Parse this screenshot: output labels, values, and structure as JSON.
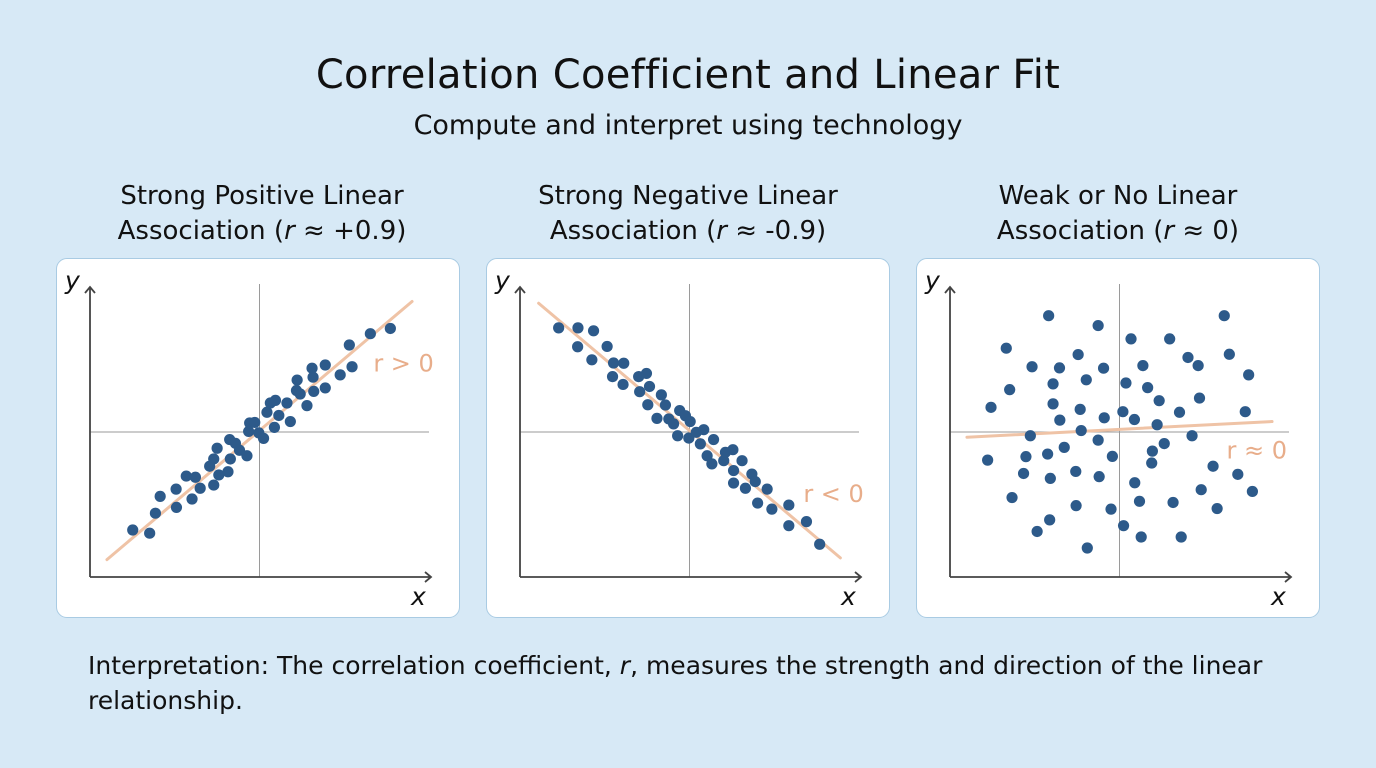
{
  "title": "Correlation Coefficient and Linear Fit",
  "subtitle": "Compute and interpret using technology",
  "interpretation": {
    "prefix": "Interpretation: The correlation coefficient, ",
    "symbol": "r",
    "suffix": ", measures the strength and direction of the linear relationship."
  },
  "colors": {
    "background": "#d7e9f6",
    "points": "#2d5a8a",
    "fit_line": "#efc3a6",
    "annotation": "#e8ad8a",
    "axes": "#444444",
    "panel_border": "#a9cbe3"
  },
  "chart_data": [
    {
      "type": "scatter",
      "title_line1": "Strong Positive Linear",
      "title_line2_prefix": "Association (",
      "title_symbol": "r",
      "title_line2_suffix": " ≈ +0.9)",
      "xlabel": "x",
      "ylabel": "y",
      "xlim": [
        0,
        10
      ],
      "ylim": [
        0,
        10
      ],
      "grid": false,
      "reference_lines": {
        "x": 5,
        "y": 5
      },
      "annotation": {
        "text": "r > 0",
        "x": 9.25,
        "y": 7.4
      },
      "fit_line": [
        [
          0.5,
          0.6
        ],
        [
          9.5,
          9.5
        ]
      ],
      "points": [
        [
          1.26,
          1.62
        ],
        [
          1.76,
          1.51
        ],
        [
          1.93,
          2.2
        ],
        [
          2.07,
          2.78
        ],
        [
          2.54,
          3.03
        ],
        [
          2.55,
          2.4
        ],
        [
          2.84,
          3.48
        ],
        [
          3.01,
          2.69
        ],
        [
          3.11,
          3.44
        ],
        [
          3.25,
          3.06
        ],
        [
          3.53,
          3.82
        ],
        [
          3.65,
          4.07
        ],
        [
          3.65,
          3.17
        ],
        [
          3.75,
          4.44
        ],
        [
          3.8,
          3.52
        ],
        [
          4.07,
          3.63
        ],
        [
          4.12,
          4.74
        ],
        [
          4.14,
          4.07
        ],
        [
          4.29,
          4.61
        ],
        [
          4.41,
          4.37
        ],
        [
          4.63,
          4.18
        ],
        [
          4.68,
          5.02
        ],
        [
          4.71,
          5.31
        ],
        [
          4.86,
          5.33
        ],
        [
          4.98,
          4.97
        ],
        [
          5.12,
          4.78
        ],
        [
          5.22,
          5.68
        ],
        [
          5.32,
          6.0
        ],
        [
          5.47,
          6.09
        ],
        [
          5.44,
          5.16
        ],
        [
          5.57,
          5.57
        ],
        [
          5.81,
          6.0
        ],
        [
          5.91,
          5.36
        ],
        [
          6.09,
          6.43
        ],
        [
          6.11,
          6.79
        ],
        [
          6.2,
          6.31
        ],
        [
          6.4,
          5.91
        ],
        [
          6.55,
          7.2
        ],
        [
          6.58,
          6.89
        ],
        [
          6.6,
          6.4
        ],
        [
          6.94,
          7.31
        ],
        [
          6.94,
          6.52
        ],
        [
          7.38,
          6.97
        ],
        [
          7.65,
          8.0
        ],
        [
          7.73,
          7.25
        ],
        [
          8.27,
          8.39
        ],
        [
          8.86,
          8.57
        ]
      ]
    },
    {
      "type": "scatter",
      "title_line1": "Strong Negative Linear",
      "title_line2_prefix": "Association (",
      "title_symbol": "r",
      "title_line2_suffix": " ≈ -0.9)",
      "xlabel": "x",
      "ylabel": "y",
      "xlim": [
        0,
        10
      ],
      "ylim": [
        0,
        10
      ],
      "grid": false,
      "reference_lines": {
        "x": 5,
        "y": 5
      },
      "annotation": {
        "text": "r < 0",
        "x": 9.25,
        "y": 2.9
      },
      "fit_line": [
        [
          0.55,
          9.44
        ],
        [
          9.45,
          0.66
        ]
      ],
      "points": [
        [
          1.14,
          8.59
        ],
        [
          1.71,
          8.59
        ],
        [
          2.17,
          8.49
        ],
        [
          1.7,
          7.94
        ],
        [
          2.57,
          7.95
        ],
        [
          2.12,
          7.49
        ],
        [
          2.76,
          7.38
        ],
        [
          3.06,
          7.37
        ],
        [
          2.73,
          6.91
        ],
        [
          3.04,
          6.64
        ],
        [
          3.5,
          6.91
        ],
        [
          3.73,
          7.02
        ],
        [
          3.53,
          6.39
        ],
        [
          3.82,
          6.57
        ],
        [
          3.77,
          5.94
        ],
        [
          4.17,
          6.28
        ],
        [
          4.04,
          5.47
        ],
        [
          4.29,
          5.93
        ],
        [
          4.39,
          5.45
        ],
        [
          4.53,
          5.28
        ],
        [
          4.71,
          5.74
        ],
        [
          4.65,
          4.87
        ],
        [
          4.88,
          5.56
        ],
        [
          5.02,
          5.36
        ],
        [
          4.98,
          4.79
        ],
        [
          5.2,
          4.99
        ],
        [
          5.42,
          5.08
        ],
        [
          5.32,
          4.59
        ],
        [
          5.52,
          4.18
        ],
        [
          5.71,
          4.74
        ],
        [
          5.66,
          3.9
        ],
        [
          6.01,
          4.01
        ],
        [
          6.06,
          4.3
        ],
        [
          6.28,
          4.39
        ],
        [
          6.3,
          3.67
        ],
        [
          6.3,
          3.24
        ],
        [
          6.55,
          4.01
        ],
        [
          6.65,
          3.06
        ],
        [
          6.84,
          3.55
        ],
        [
          6.94,
          3.29
        ],
        [
          7.01,
          2.55
        ],
        [
          7.29,
          3.03
        ],
        [
          7.43,
          2.34
        ],
        [
          7.93,
          2.48
        ],
        [
          7.93,
          1.77
        ],
        [
          8.45,
          1.91
        ],
        [
          8.84,
          1.13
        ]
      ]
    },
    {
      "type": "scatter",
      "title_line1": "Weak or No Linear",
      "title_line2_prefix": "Association (",
      "title_symbol": "r",
      "title_line2_suffix": " ≈ 0)",
      "xlabel": "x",
      "ylabel": "y",
      "xlim": [
        0,
        10
      ],
      "ylim": [
        0,
        10
      ],
      "grid": false,
      "reference_lines": {
        "x": 5,
        "y": 5
      },
      "annotation": {
        "text": "r ≈ 0",
        "x": 9.05,
        "y": 4.4
      },
      "fit_line": [
        [
          0.5,
          4.82
        ],
        [
          9.5,
          5.36
        ]
      ],
      "points": [
        [
          2.91,
          9.01
        ],
        [
          4.37,
          8.67
        ],
        [
          1.66,
          7.89
        ],
        [
          5.34,
          8.21
        ],
        [
          6.48,
          8.21
        ],
        [
          8.09,
          9.01
        ],
        [
          3.78,
          7.67
        ],
        [
          7.02,
          7.57
        ],
        [
          8.24,
          7.68
        ],
        [
          2.42,
          7.25
        ],
        [
          3.23,
          7.21
        ],
        [
          4.53,
          7.2
        ],
        [
          5.69,
          7.29
        ],
        [
          7.32,
          7.29
        ],
        [
          8.81,
          6.97
        ],
        [
          1.76,
          6.46
        ],
        [
          3.04,
          6.66
        ],
        [
          4.02,
          6.8
        ],
        [
          5.19,
          6.69
        ],
        [
          5.83,
          6.53
        ],
        [
          1.21,
          5.85
        ],
        [
          3.04,
          5.97
        ],
        [
          3.84,
          5.78
        ],
        [
          6.17,
          6.08
        ],
        [
          7.36,
          6.17
        ],
        [
          3.24,
          5.41
        ],
        [
          4.55,
          5.49
        ],
        [
          5.1,
          5.7
        ],
        [
          5.44,
          5.43
        ],
        [
          6.77,
          5.68
        ],
        [
          8.71,
          5.7
        ],
        [
          2.37,
          4.87
        ],
        [
          3.87,
          5.05
        ],
        [
          6.11,
          5.25
        ],
        [
          7.14,
          4.87
        ],
        [
          4.37,
          4.72
        ],
        [
          1.11,
          4.03
        ],
        [
          2.24,
          4.15
        ],
        [
          2.88,
          4.24
        ],
        [
          3.37,
          4.47
        ],
        [
          4.79,
          4.16
        ],
        [
          5.97,
          4.34
        ],
        [
          6.32,
          4.6
        ],
        [
          5.95,
          3.93
        ],
        [
          2.17,
          3.57
        ],
        [
          2.96,
          3.4
        ],
        [
          3.71,
          3.64
        ],
        [
          4.4,
          3.46
        ],
        [
          5.45,
          3.25
        ],
        [
          7.76,
          3.82
        ],
        [
          8.49,
          3.54
        ],
        [
          1.83,
          2.74
        ],
        [
          7.41,
          3.01
        ],
        [
          8.92,
          2.95
        ],
        [
          3.72,
          2.46
        ],
        [
          4.75,
          2.34
        ],
        [
          5.59,
          2.61
        ],
        [
          6.58,
          2.57
        ],
        [
          7.88,
          2.36
        ],
        [
          2.94,
          1.97
        ],
        [
          2.57,
          1.57
        ],
        [
          5.12,
          1.77
        ],
        [
          5.64,
          1.38
        ],
        [
          6.82,
          1.38
        ],
        [
          4.05,
          1.0
        ]
      ]
    }
  ]
}
